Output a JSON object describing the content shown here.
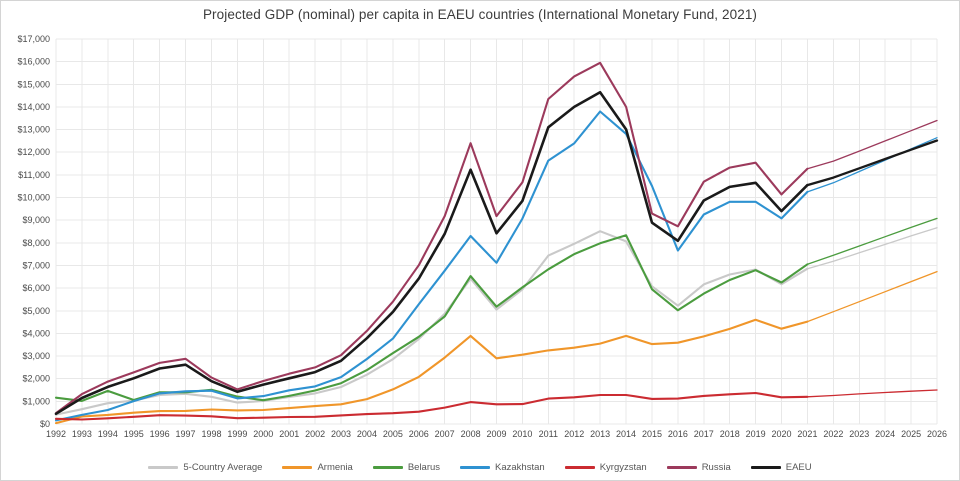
{
  "chart_data": {
    "type": "line",
    "title": "Projected GDP (nominal) per capita in EAEU countries (International Monetary Fund, 2021)",
    "xlabel": "",
    "ylabel": "",
    "x_range": [
      1992,
      2026
    ],
    "ylim": [
      0,
      17000
    ],
    "y_tick_step": 1000,
    "y_tick_prefix": "$",
    "grid": true,
    "legend_position": "bottom",
    "projection_start_year": 2021,
    "years": [
      1992,
      1993,
      1994,
      1995,
      1996,
      1997,
      1998,
      1999,
      2000,
      2001,
      2002,
      2003,
      2004,
      2005,
      2006,
      2007,
      2008,
      2009,
      2010,
      2011,
      2012,
      2013,
      2014,
      2015,
      2016,
      2017,
      2018,
      2019,
      2020,
      2021,
      2022,
      2023,
      2024,
      2025,
      2026
    ],
    "series": [
      {
        "name": "5-Country Average",
        "color": "#c9c9c9",
        "values": [
          414,
          654,
          920,
          1034,
          1282,
          1335,
          1202,
          945,
          1016,
          1192,
          1350,
          1632,
          2179,
          2861,
          3755,
          4871,
          6417,
          5050,
          5942,
          7436,
          7958,
          8512,
          8062,
          6078,
          5224,
          6164,
          6600,
          6822,
          6172,
          6858,
          7186,
          7558,
          7930,
          8304,
          8670
        ]
      },
      {
        "name": "Armenia",
        "color": "#f0962a",
        "values": [
          40,
          330,
          400,
          500,
          570,
          580,
          640,
          600,
          620,
          700,
          790,
          870,
          1100,
          1530,
          2080,
          2930,
          3890,
          2900,
          3060,
          3250,
          3370,
          3550,
          3890,
          3530,
          3590,
          3870,
          4200,
          4600,
          4210,
          4520,
          4960,
          5400,
          5840,
          6290,
          6730
        ]
      },
      {
        "name": "Belarus",
        "color": "#4b9c3f",
        "values": [
          1160,
          1020,
          1460,
          1060,
          1400,
          1400,
          1510,
          1210,
          1050,
          1240,
          1480,
          1800,
          2380,
          3130,
          3850,
          4750,
          6530,
          5180,
          6030,
          6830,
          7500,
          7980,
          8330,
          5950,
          5020,
          5760,
          6360,
          6790,
          6250,
          7050,
          7450,
          7860,
          8270,
          8680,
          9080
        ]
      },
      {
        "name": "Kazakhstan",
        "color": "#2e92d1",
        "values": [
          160,
          400,
          620,
          1010,
          1350,
          1445,
          1470,
          1130,
          1230,
          1490,
          1660,
          2070,
          2870,
          3770,
          5290,
          6770,
          8300,
          7120,
          9070,
          11630,
          12390,
          13800,
          12810,
          10510,
          7660,
          9250,
          9810,
          9810,
          9080,
          10250,
          10650,
          11150,
          11650,
          12150,
          12640
        ]
      },
      {
        "name": "Kyrgyzstan",
        "color": "#cb2b31",
        "values": [
          230,
          200,
          250,
          320,
          390,
          370,
          340,
          255,
          280,
          310,
          320,
          380,
          435,
          475,
          545,
          725,
          965,
          870,
          880,
          1120,
          1180,
          1280,
          1280,
          1110,
          1120,
          1240,
          1310,
          1370,
          1180,
          1200,
          1260,
          1330,
          1390,
          1450,
          1500
        ]
      },
      {
        "name": "Russia",
        "color": "#9c3a5c",
        "values": [
          480,
          1320,
          1870,
          2280,
          2700,
          2880,
          2050,
          1530,
          1900,
          2220,
          2500,
          3040,
          4110,
          5400,
          7010,
          9180,
          12400,
          9180,
          10670,
          14350,
          15350,
          15950,
          14000,
          9290,
          8730,
          10700,
          11320,
          11540,
          10140,
          11270,
          11610,
          12050,
          12500,
          12950,
          13400
        ]
      },
      {
        "name": "EAEU",
        "color": "#1a1a1a",
        "values": [
          450,
          1150,
          1640,
          2020,
          2450,
          2620,
          1890,
          1420,
          1740,
          2020,
          2290,
          2790,
          3790,
          4950,
          6420,
          8400,
          11230,
          8420,
          9850,
          13100,
          14000,
          14650,
          13010,
          8890,
          8090,
          9870,
          10470,
          10650,
          9400,
          10550,
          10880,
          11290,
          11700,
          12110,
          12520
        ]
      }
    ]
  }
}
